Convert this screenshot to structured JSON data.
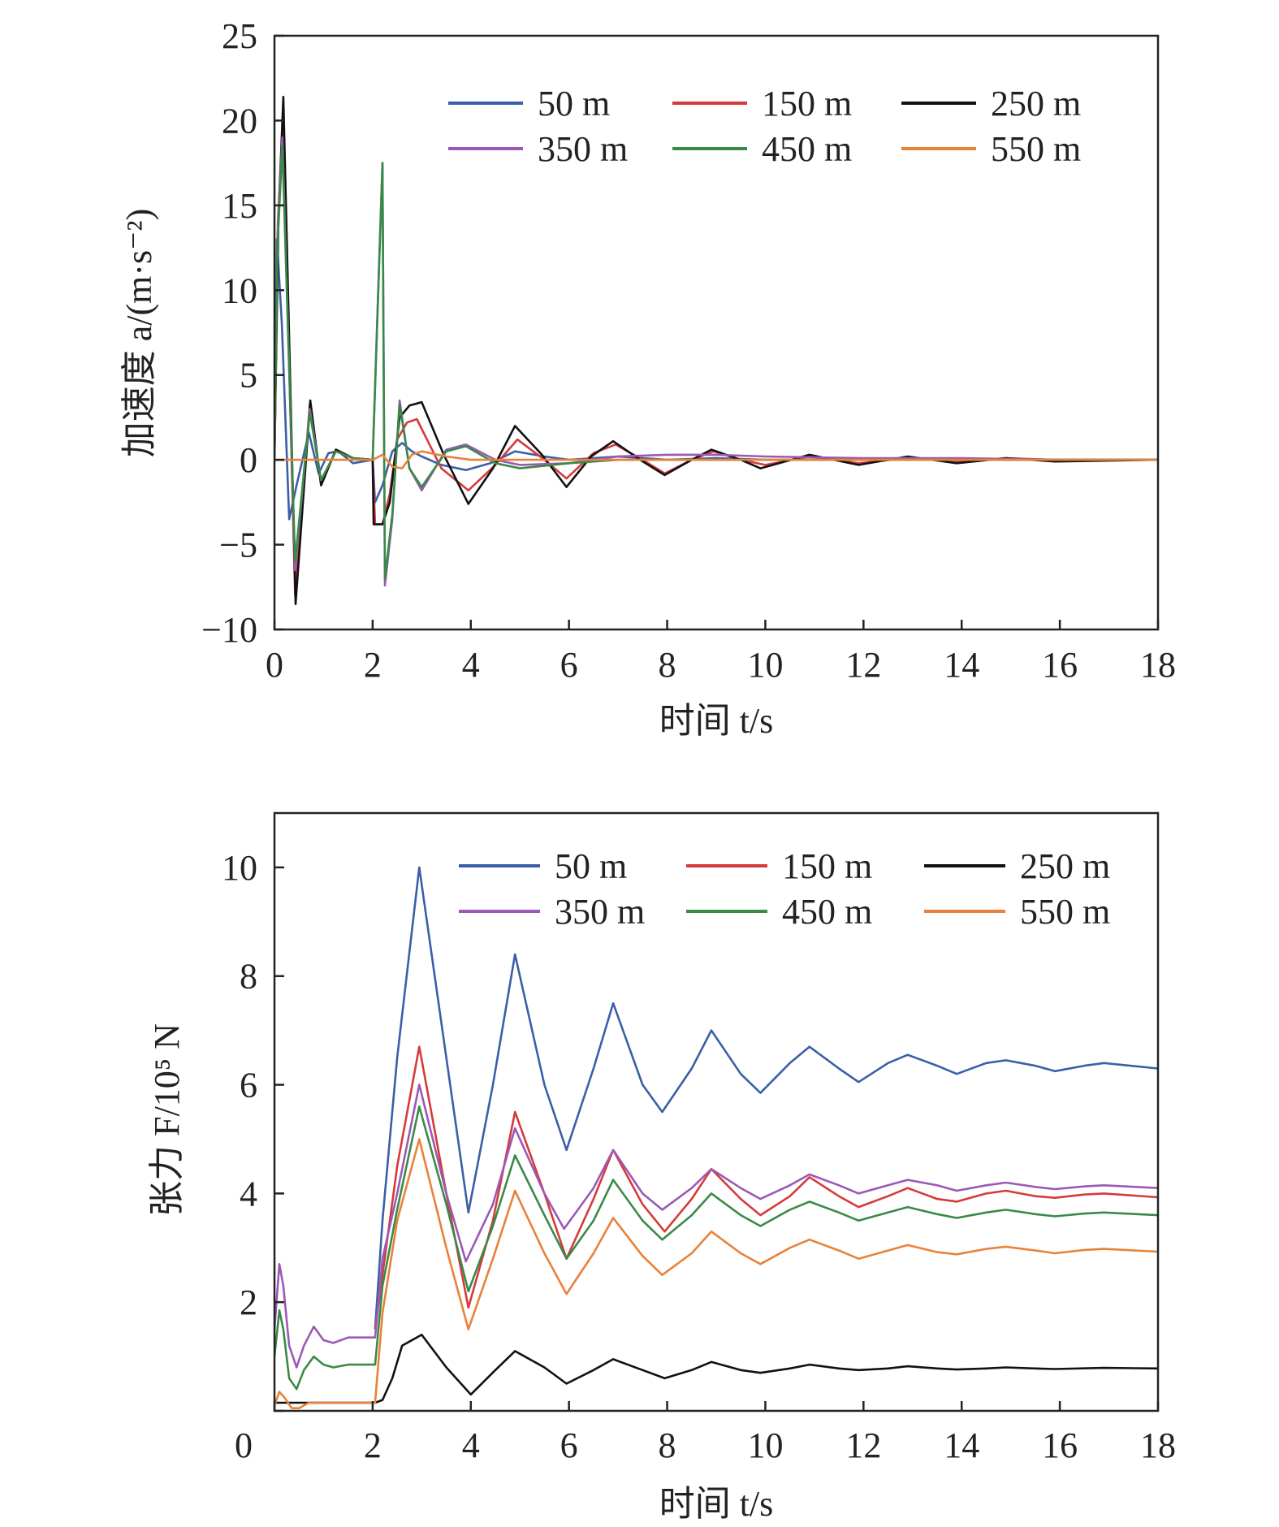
{
  "chart_data": [
    {
      "type": "line",
      "xlabel": "时间 t/s",
      "ylabel": "加速度 a/(m·s⁻²)",
      "xlim": [
        0,
        18
      ],
      "ylim": [
        -10,
        25
      ],
      "xticks": [
        0,
        2,
        4,
        6,
        8,
        10,
        12,
        14,
        16,
        18
      ],
      "yticks": [
        -10,
        -5,
        0,
        5,
        10,
        15,
        20,
        25
      ],
      "ytick_labels": [
        "−10",
        "−5",
        "0",
        "5",
        "10",
        "15",
        "20",
        "25"
      ],
      "grid": false,
      "legend": "top-right",
      "series": [
        {
          "name": "50 m",
          "color": "#3a5fa8",
          "x": [
            0,
            0.05,
            0.15,
            0.3,
            0.45,
            0.7,
            0.9,
            1.1,
            1.3,
            1.6,
            2.0,
            2.05,
            2.2,
            2.4,
            2.6,
            2.8,
            3.0,
            3.4,
            3.9,
            4.4,
            4.9,
            5.5,
            6.0,
            7.0,
            8.0,
            9.0,
            10.0,
            12.0,
            14.0,
            16.0,
            18.0
          ],
          "y": [
            0,
            13,
            8,
            -3.5,
            -1.5,
            1.6,
            -0.8,
            0.4,
            0.5,
            -0.2,
            0,
            -2.5,
            -1.5,
            0.5,
            1.0,
            0.5,
            0.2,
            -0.3,
            -0.6,
            -0.2,
            0.5,
            0.2,
            0,
            0.2,
            0,
            0.1,
            0,
            0,
            0,
            0,
            0
          ]
        },
        {
          "name": "150 m",
          "color": "#d63a3a",
          "x": [
            0,
            0.07,
            0.17,
            0.42,
            0.72,
            0.95,
            1.25,
            1.6,
            2.0,
            2.05,
            2.2,
            2.35,
            2.5,
            2.7,
            2.9,
            3.4,
            3.95,
            4.5,
            4.95,
            5.5,
            5.95,
            6.5,
            6.95,
            7.5,
            7.95,
            8.5,
            8.95,
            9.5,
            10.0,
            10.9,
            11.9,
            12.9,
            13.9,
            14.9,
            15.9,
            18.0
          ],
          "y": [
            0,
            14,
            20,
            -8,
            3.3,
            -1.5,
            0.6,
            0.1,
            0,
            -3.8,
            -3.8,
            -2,
            1.2,
            2.2,
            2.4,
            -0.5,
            -1.8,
            -0.3,
            1.2,
            0,
            -1.1,
            0.4,
            0.9,
            0,
            -0.8,
            0,
            0.5,
            0,
            -0.3,
            0.2,
            -0.2,
            0.1,
            -0.1,
            0.1,
            0,
            0
          ]
        },
        {
          "name": "250 m",
          "color": "#111111",
          "x": [
            0,
            0.08,
            0.18,
            0.43,
            0.73,
            0.95,
            1.25,
            1.6,
            2.0,
            2.02,
            2.2,
            2.35,
            2.55,
            2.75,
            3.0,
            3.45,
            3.95,
            4.45,
            4.9,
            5.45,
            5.95,
            6.45,
            6.9,
            7.45,
            7.95,
            8.5,
            8.9,
            9.5,
            9.9,
            10.9,
            11.9,
            12.9,
            13.9,
            14.9,
            15.9,
            18.0
          ],
          "y": [
            0,
            14,
            21.4,
            -8.5,
            3.5,
            -1.5,
            0.6,
            0.1,
            0,
            -3.8,
            -3.8,
            -2.5,
            2.5,
            3.2,
            3.4,
            0.3,
            -2.6,
            -0.5,
            2.0,
            0.3,
            -1.6,
            0.2,
            1.1,
            0,
            -0.9,
            0,
            0.6,
            0,
            -0.5,
            0.3,
            -0.3,
            0.2,
            -0.2,
            0.1,
            -0.1,
            0
          ]
        },
        {
          "name": "350 m",
          "color": "#9b59b6",
          "x": [
            0,
            0.06,
            0.16,
            0.42,
            0.72,
            0.95,
            1.25,
            1.6,
            2.0,
            2.2,
            2.25,
            2.4,
            2.55,
            2.75,
            3.0,
            3.5,
            3.9,
            4.5,
            5.0,
            6.0,
            7.0,
            8.0,
            9.0,
            10.0,
            12.0,
            14.0,
            16.0,
            18.0
          ],
          "y": [
            0,
            13,
            19,
            -6.5,
            3.0,
            -1.2,
            0.5,
            0.1,
            0,
            17.5,
            -7.4,
            -3.5,
            3.5,
            -0.5,
            -1.8,
            0.6,
            0.9,
            0,
            -0.3,
            -0.2,
            0.2,
            0.3,
            0.3,
            0.2,
            0.1,
            0.1,
            0,
            0
          ]
        },
        {
          "name": "450 m",
          "color": "#3a8a47",
          "x": [
            0,
            0.06,
            0.16,
            0.42,
            0.72,
            0.95,
            1.25,
            1.6,
            2.0,
            2.2,
            2.25,
            2.4,
            2.55,
            2.75,
            3.0,
            3.5,
            3.9,
            4.5,
            5.0,
            6.0,
            7.0,
            8.0,
            9.0,
            10.0,
            12.0,
            14.0,
            16.0,
            18.0
          ],
          "y": [
            0,
            12.5,
            18.5,
            -6.0,
            2.8,
            -1.2,
            0.5,
            0.1,
            0,
            17.5,
            -7.0,
            -3.2,
            3.3,
            -0.5,
            -1.6,
            0.5,
            0.8,
            -0.2,
            -0.5,
            -0.2,
            0,
            0,
            0,
            0,
            0,
            0,
            0,
            0
          ]
        },
        {
          "name": "550 m",
          "color": "#e8823a",
          "x": [
            0,
            2.0,
            2.2,
            2.4,
            2.6,
            2.8,
            3.0,
            3.5,
            4.0,
            5.0,
            6.0,
            8.0,
            18.0
          ],
          "y": [
            0,
            0,
            0.3,
            -0.4,
            -0.5,
            0.3,
            0.5,
            0.2,
            0,
            0,
            0,
            0,
            0
          ]
        }
      ]
    },
    {
      "type": "line",
      "xlabel": "时间 t/s",
      "ylabel": "张力 F/10⁵ N",
      "xlim": [
        0,
        18
      ],
      "ylim": [
        0,
        11
      ],
      "xticks": [
        0,
        2,
        4,
        6,
        8,
        10,
        12,
        14,
        16,
        18
      ],
      "yticks": [
        0,
        2,
        4,
        6,
        8,
        10
      ],
      "ytick_labels": [
        "0",
        "2",
        "4",
        "6",
        "8",
        "10"
      ],
      "grid": false,
      "legend": "top-right",
      "series": [
        {
          "name": "50 m",
          "color": "#3a5fa8",
          "x": [
            2.05,
            2.2,
            2.5,
            2.95,
            3.5,
            3.95,
            4.45,
            4.9,
            5.5,
            5.95,
            6.5,
            6.9,
            7.5,
            7.9,
            8.5,
            8.9,
            9.5,
            9.9,
            10.5,
            10.9,
            11.5,
            11.9,
            12.5,
            12.9,
            13.5,
            13.9,
            14.5,
            14.9,
            15.5,
            15.9,
            16.5,
            16.9,
            18.0
          ],
          "y": [
            1.5,
            3.5,
            6.5,
            10.0,
            6.5,
            3.65,
            6.0,
            8.4,
            6.0,
            4.8,
            6.3,
            7.5,
            6.0,
            5.5,
            6.3,
            7.0,
            6.2,
            5.85,
            6.4,
            6.7,
            6.3,
            6.05,
            6.4,
            6.55,
            6.35,
            6.2,
            6.4,
            6.45,
            6.35,
            6.25,
            6.35,
            6.4,
            6.3
          ]
        },
        {
          "name": "150 m",
          "color": "#d63a3a",
          "x": [
            2.05,
            2.2,
            2.5,
            2.95,
            3.5,
            3.95,
            4.45,
            4.9,
            5.5,
            5.95,
            6.5,
            6.9,
            7.5,
            7.95,
            8.5,
            8.9,
            9.5,
            9.9,
            10.5,
            10.9,
            11.5,
            11.9,
            12.5,
            12.9,
            13.5,
            13.9,
            14.5,
            14.9,
            15.5,
            15.9,
            16.5,
            16.9,
            18.0
          ],
          "y": [
            1.5,
            2.5,
            4.5,
            6.7,
            4.0,
            1.9,
            3.5,
            5.5,
            4.0,
            2.8,
            3.9,
            4.8,
            3.8,
            3.3,
            3.9,
            4.45,
            3.9,
            3.6,
            3.95,
            4.3,
            3.95,
            3.75,
            3.95,
            4.1,
            3.9,
            3.85,
            4.0,
            4.05,
            3.95,
            3.92,
            3.98,
            4.0,
            3.93
          ]
        },
        {
          "name": "250 m",
          "color": "#111111",
          "x": [
            0,
            1.5,
            2.05,
            2.2,
            2.4,
            2.6,
            3.0,
            3.5,
            4.0,
            4.5,
            4.9,
            5.5,
            5.95,
            6.5,
            6.9,
            7.5,
            7.95,
            8.5,
            8.9,
            9.5,
            9.9,
            10.5,
            10.9,
            11.5,
            11.9,
            12.5,
            12.9,
            13.5,
            13.9,
            14.5,
            14.9,
            15.5,
            15.9,
            16.9,
            18.0
          ],
          "y": [
            0.15,
            0.15,
            0.15,
            0.2,
            0.6,
            1.2,
            1.4,
            0.8,
            0.3,
            0.75,
            1.1,
            0.8,
            0.5,
            0.75,
            0.95,
            0.75,
            0.6,
            0.75,
            0.9,
            0.75,
            0.7,
            0.78,
            0.85,
            0.78,
            0.75,
            0.78,
            0.82,
            0.78,
            0.76,
            0.78,
            0.8,
            0.78,
            0.77,
            0.79,
            0.78
          ]
        },
        {
          "name": "350 m",
          "color": "#9b59b6",
          "x": [
            0,
            0.1,
            0.18,
            0.3,
            0.45,
            0.6,
            0.8,
            1.0,
            1.2,
            1.5,
            2.05,
            2.2,
            2.5,
            2.95,
            3.5,
            3.9,
            4.45,
            4.9,
            5.5,
            5.9,
            6.5,
            6.9,
            7.5,
            7.9,
            8.5,
            8.9,
            9.5,
            9.9,
            10.5,
            10.9,
            11.5,
            11.9,
            12.5,
            12.9,
            13.5,
            13.9,
            14.5,
            14.9,
            15.5,
            15.9,
            16.5,
            16.9,
            18.0
          ],
          "y": [
            1.5,
            2.7,
            2.3,
            1.2,
            0.8,
            1.2,
            1.55,
            1.3,
            1.25,
            1.35,
            1.35,
            2.8,
            4.0,
            6.0,
            4.0,
            2.75,
            3.8,
            5.2,
            4.0,
            3.35,
            4.1,
            4.8,
            4.0,
            3.7,
            4.1,
            4.45,
            4.1,
            3.9,
            4.15,
            4.35,
            4.15,
            4.0,
            4.15,
            4.25,
            4.15,
            4.05,
            4.15,
            4.2,
            4.12,
            4.08,
            4.13,
            4.15,
            4.1
          ]
        },
        {
          "name": "450 m",
          "color": "#3a8a47",
          "x": [
            0,
            0.1,
            0.18,
            0.3,
            0.45,
            0.6,
            0.8,
            1.0,
            1.2,
            1.5,
            2.05,
            2.2,
            2.5,
            2.95,
            3.5,
            3.95,
            4.45,
            4.9,
            5.5,
            5.95,
            6.5,
            6.9,
            7.5,
            7.9,
            8.5,
            8.9,
            9.5,
            9.9,
            10.5,
            10.9,
            11.5,
            11.9,
            12.5,
            12.9,
            13.5,
            13.9,
            14.5,
            14.9,
            15.5,
            15.9,
            16.5,
            16.9,
            18.0
          ],
          "y": [
            1.0,
            1.85,
            1.5,
            0.6,
            0.4,
            0.75,
            1.0,
            0.85,
            0.8,
            0.85,
            0.85,
            2.3,
            3.7,
            5.6,
            3.8,
            2.2,
            3.4,
            4.7,
            3.6,
            2.8,
            3.5,
            4.25,
            3.5,
            3.15,
            3.6,
            4.0,
            3.6,
            3.4,
            3.7,
            3.85,
            3.65,
            3.5,
            3.65,
            3.75,
            3.62,
            3.55,
            3.65,
            3.7,
            3.62,
            3.58,
            3.63,
            3.65,
            3.6
          ]
        },
        {
          "name": "550 m",
          "color": "#e8823a",
          "x": [
            0,
            0.1,
            0.2,
            0.35,
            0.5,
            0.7,
            1.0,
            1.5,
            2.05,
            2.2,
            2.5,
            2.95,
            3.5,
            3.95,
            4.45,
            4.9,
            5.5,
            5.95,
            6.5,
            6.9,
            7.5,
            7.9,
            8.5,
            8.9,
            9.5,
            9.9,
            10.5,
            10.9,
            11.5,
            11.9,
            12.5,
            12.9,
            13.5,
            13.9,
            14.5,
            14.9,
            15.5,
            15.9,
            16.5,
            16.9,
            18.0
          ],
          "y": [
            0.1,
            0.35,
            0.25,
            0.05,
            0.05,
            0.15,
            0.15,
            0.15,
            0.15,
            1.8,
            3.5,
            5.0,
            3.0,
            1.5,
            2.8,
            4.05,
            2.9,
            2.15,
            2.9,
            3.55,
            2.85,
            2.5,
            2.9,
            3.3,
            2.9,
            2.7,
            3.0,
            3.15,
            2.95,
            2.8,
            2.95,
            3.05,
            2.92,
            2.88,
            2.98,
            3.02,
            2.95,
            2.9,
            2.96,
            2.98,
            2.93
          ]
        }
      ]
    }
  ]
}
